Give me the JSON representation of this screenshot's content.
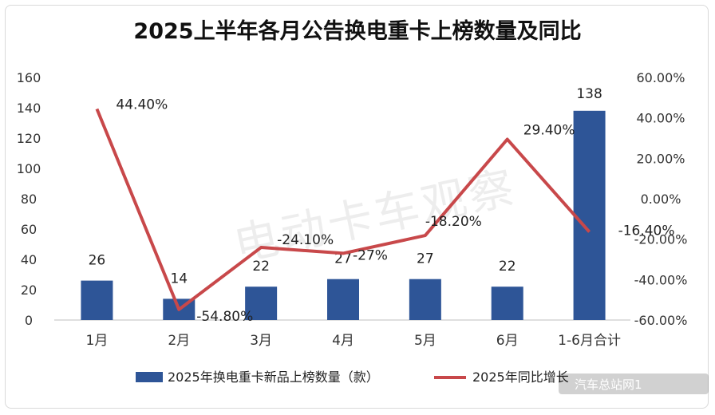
{
  "chart_data": {
    "type": "bar+line",
    "title": "2025上半年各月公告换电重卡上榜数量及同比",
    "categories": [
      "1月",
      "2月",
      "3月",
      "4月",
      "5月",
      "6月",
      "1-6月合计"
    ],
    "series": [
      {
        "name": "2025年换电重卡新品上榜数量（款）",
        "type": "bar",
        "axis": "left",
        "color": "#2e5597",
        "values": [
          26,
          14,
          22,
          27,
          27,
          22,
          138
        ],
        "labels": [
          "26",
          "14",
          "22",
          "27",
          "27",
          "22",
          "138"
        ]
      },
      {
        "name": "2025年同比增长",
        "type": "line",
        "axis": "right",
        "color": "#c8484a",
        "values": [
          44.4,
          -54.8,
          -24.1,
          -27,
          -18.2,
          29.4,
          -16.4
        ],
        "labels": [
          "44.40%",
          "-54.80%",
          "-24.10%",
          "-27%",
          "-18.20%",
          "29.40%",
          "-16.40%"
        ]
      }
    ],
    "y_left": {
      "min": 0,
      "max": 160,
      "ticks": [
        0,
        20,
        40,
        60,
        80,
        100,
        120,
        140,
        160
      ]
    },
    "y_right": {
      "min": -60,
      "max": 60,
      "ticks": [
        -60,
        -40,
        -20,
        0,
        20,
        40,
        60
      ],
      "tick_labels": [
        "-60.00%",
        "-40.00%",
        "-20.00%",
        "0.00%",
        "20.00%",
        "40.00%",
        "60.00%"
      ]
    },
    "legend_position": "bottom",
    "watermark": "电动卡车观察"
  },
  "credit": "汽车总站网1"
}
